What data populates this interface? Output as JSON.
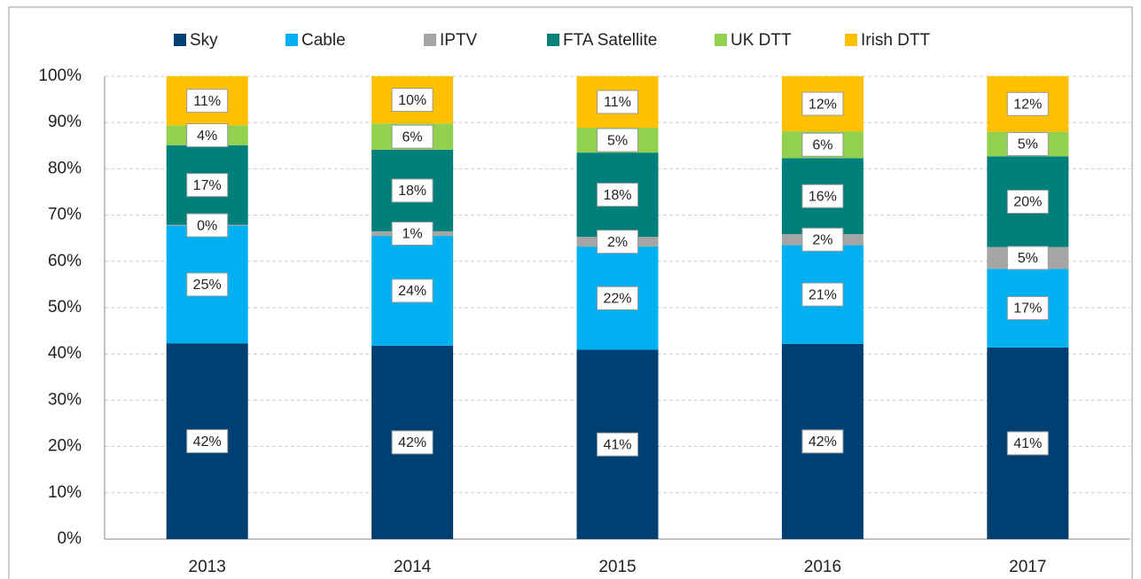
{
  "chart_data": {
    "type": "stacked-bar",
    "categories": [
      "2013",
      "2014",
      "2015",
      "2016",
      "2017"
    ],
    "series": [
      {
        "name": "Sky",
        "color": "#003f72",
        "values": [
          42.3,
          41.8,
          40.9,
          42.2,
          41.4
        ],
        "value_labels": [
          "42%",
          "42%",
          "41%",
          "42%",
          "41%"
        ]
      },
      {
        "name": "Cable",
        "color": "#00b0f0",
        "values": [
          25.4,
          23.7,
          22.3,
          21.3,
          17.0
        ],
        "value_labels": [
          "25%",
          "24%",
          "22%",
          "21%",
          "17%"
        ]
      },
      {
        "name": "IPTV",
        "color": "#a5a5a5",
        "values": [
          0.2,
          1.0,
          2.1,
          2.4,
          4.7
        ],
        "value_labels": [
          "0%",
          "1%",
          "2%",
          "2%",
          "5%"
        ]
      },
      {
        "name": "FTA Satellite",
        "color": "#007f7b",
        "values": [
          17.2,
          17.6,
          18.2,
          16.4,
          19.6
        ],
        "value_labels": [
          "17%",
          "18%",
          "18%",
          "16%",
          "20%"
        ]
      },
      {
        "name": "UK DTT",
        "color": "#92d050",
        "values": [
          4.3,
          5.7,
          5.4,
          5.8,
          5.3
        ],
        "value_labels": [
          "4%",
          "6%",
          "5%",
          "6%",
          "5%"
        ]
      },
      {
        "name": "Irish DTT",
        "color": "#ffc000",
        "values": [
          10.6,
          10.2,
          11.1,
          11.9,
          12.0
        ],
        "value_labels": [
          "11%",
          "10%",
          "11%",
          "12%",
          "12%"
        ]
      }
    ],
    "ylim": [
      0,
      100
    ],
    "yticks": [
      {
        "value": 0,
        "label": "0%"
      },
      {
        "value": 10,
        "label": "10%"
      },
      {
        "value": 20,
        "label": "20%"
      },
      {
        "value": 30,
        "label": "30%"
      },
      {
        "value": 40,
        "label": "40%"
      },
      {
        "value": 50,
        "label": "50%"
      },
      {
        "value": 60,
        "label": "60%"
      },
      {
        "value": 70,
        "label": "70%"
      },
      {
        "value": 80,
        "label": "80%"
      },
      {
        "value": 90,
        "label": "90%"
      },
      {
        "value": 100,
        "label": "100%"
      }
    ],
    "grid": true,
    "legend": "top"
  }
}
